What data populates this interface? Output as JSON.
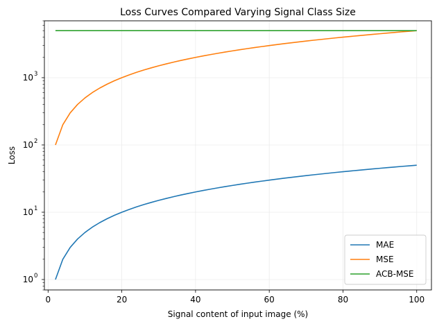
{
  "chart_data": {
    "type": "line",
    "title": "Loss Curves Compared Varying Signal Class Size",
    "xlabel": "Signal content of input image (%)",
    "ylabel": "Loss",
    "yscale": "log",
    "xlim": [
      -1,
      104
    ],
    "ylim": [
      0.7,
      7000
    ],
    "grid": true,
    "legend_position": "lower-right",
    "x_ticks": [
      0,
      20,
      40,
      60,
      80,
      100
    ],
    "x_tick_labels": [
      "0",
      "20",
      "40",
      "60",
      "80",
      "100"
    ],
    "y_ticks": [
      1,
      10,
      100,
      1000
    ],
    "y_tick_labels": [
      "10",
      "10",
      "10",
      "10"
    ],
    "y_tick_exponents": [
      "0",
      "1",
      "2",
      "3"
    ],
    "x": [
      2,
      4,
      6,
      8,
      10,
      12,
      14,
      16,
      18,
      20,
      22,
      24,
      26,
      28,
      30,
      32,
      34,
      36,
      38,
      40,
      42,
      44,
      46,
      48,
      50,
      52,
      54,
      56,
      58,
      60,
      62,
      64,
      66,
      68,
      70,
      72,
      74,
      76,
      78,
      80,
      82,
      84,
      86,
      88,
      90,
      92,
      94,
      96,
      98,
      100
    ],
    "series": [
      {
        "name": "MAE",
        "color": "#1f77b4",
        "values": [
          1,
          2,
          3,
          4,
          5,
          6,
          7,
          8,
          9,
          10,
          11,
          12,
          13,
          14,
          15,
          16,
          17,
          18,
          19,
          20,
          21,
          22,
          23,
          24,
          25,
          26,
          27,
          28,
          29,
          30,
          31,
          32,
          33,
          34,
          35,
          36,
          37,
          38,
          39,
          40,
          41,
          42,
          43,
          44,
          45,
          46,
          47,
          48,
          49,
          50
        ]
      },
      {
        "name": "MSE",
        "color": "#ff7f0e",
        "values": [
          100,
          200,
          300,
          400,
          500,
          600,
          700,
          800,
          900,
          1000,
          1100,
          1200,
          1300,
          1400,
          1500,
          1600,
          1700,
          1800,
          1900,
          2000,
          2100,
          2200,
          2300,
          2400,
          2500,
          2600,
          2700,
          2800,
          2900,
          3000,
          3100,
          3200,
          3300,
          3400,
          3500,
          3600,
          3700,
          3800,
          3900,
          4000,
          4100,
          4200,
          4300,
          4400,
          4500,
          4600,
          4700,
          4800,
          4900,
          5000
        ]
      },
      {
        "name": "ACB-MSE",
        "color": "#2ca02c",
        "values": [
          5000,
          5000,
          5000,
          5000,
          5000,
          5000,
          5000,
          5000,
          5000,
          5000,
          5000,
          5000,
          5000,
          5000,
          5000,
          5000,
          5000,
          5000,
          5000,
          5000,
          5000,
          5000,
          5000,
          5000,
          5000,
          5000,
          5000,
          5000,
          5000,
          5000,
          5000,
          5000,
          5000,
          5000,
          5000,
          5000,
          5000,
          5000,
          5000,
          5000,
          5000,
          5000,
          5000,
          5000,
          5000,
          5000,
          5000,
          5000,
          5000,
          5000
        ]
      }
    ]
  }
}
